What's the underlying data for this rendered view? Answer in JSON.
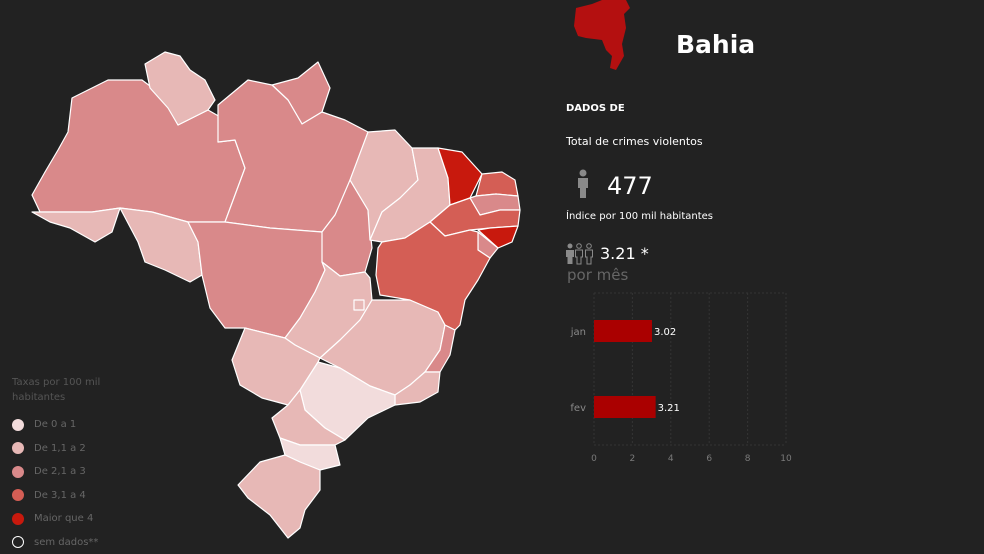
{
  "map": {
    "states": [
      {
        "code": "AM",
        "level": 3
      },
      {
        "code": "RR",
        "level": 2
      },
      {
        "code": "AP",
        "level": 3
      },
      {
        "code": "PA",
        "level": 3
      },
      {
        "code": "AC",
        "level": 2
      },
      {
        "code": "RO",
        "level": 2
      },
      {
        "code": "MT",
        "level": 3
      },
      {
        "code": "TO",
        "level": 3
      },
      {
        "code": "MA",
        "level": 2
      },
      {
        "code": "PI",
        "level": 2
      },
      {
        "code": "CE",
        "level": 5
      },
      {
        "code": "RN",
        "level": 4
      },
      {
        "code": "PB",
        "level": 3
      },
      {
        "code": "PE",
        "level": 4
      },
      {
        "code": "AL",
        "level": 5
      },
      {
        "code": "SE",
        "level": 3
      },
      {
        "code": "BA",
        "level": 4,
        "selected": true
      },
      {
        "code": "GO",
        "level": 2
      },
      {
        "code": "DF",
        "level": 2
      },
      {
        "code": "MG",
        "level": 2
      },
      {
        "code": "ES",
        "level": 3
      },
      {
        "code": "RJ",
        "level": 2
      },
      {
        "code": "SP",
        "level": 1
      },
      {
        "code": "MS",
        "level": 2
      },
      {
        "code": "PR",
        "level": 2
      },
      {
        "code": "SC",
        "level": 1
      },
      {
        "code": "RS",
        "level": 2
      }
    ]
  },
  "legend": {
    "title": "Taxas por 100 mil habitantes",
    "items": [
      {
        "label": "De 0 a 1",
        "color": "#f2dcdc"
      },
      {
        "label": "De 1,1 a 2",
        "color": "#e7b8b6"
      },
      {
        "label": "De 2,1 a 3",
        "color": "#d9898a"
      },
      {
        "label": "De 3,1 a 4",
        "color": "#d45e55"
      },
      {
        "label": "Maior que 4",
        "color": "#c8190d"
      },
      {
        "label": "sem dados**",
        "color": "#222222",
        "outline": "#ffffff"
      }
    ]
  },
  "details": {
    "state_name": "Bahia",
    "section_title": "DADOS DE",
    "total_label": "Total de crimes violentos",
    "total_value": "477",
    "index_label": "Índice por 100 mil habitantes",
    "index_value": "3.21 *",
    "monthly_label": "por mês",
    "state_icon_color": "#b41010"
  },
  "chart_data": {
    "type": "bar",
    "orientation": "horizontal",
    "categories": [
      "jan",
      "fev"
    ],
    "values": [
      3.02,
      3.21
    ],
    "data_labels": [
      "3.02",
      "3.21"
    ],
    "xlim": [
      0,
      10
    ],
    "xticks": [
      0,
      2,
      4,
      6,
      8,
      10
    ],
    "xtick_labels": [
      "0",
      "2",
      "4",
      "6",
      "8",
      "10"
    ],
    "bar_color": "#aa0000",
    "grid": true
  }
}
